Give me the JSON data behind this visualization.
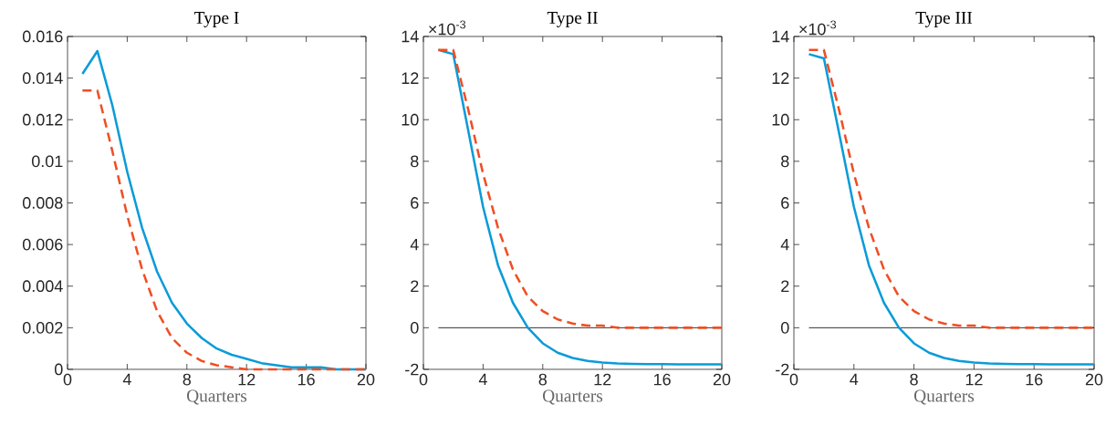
{
  "chart_data": [
    {
      "type": "line",
      "title": "Type I",
      "xlabel": "Quarters",
      "x": [
        1,
        2,
        3,
        4,
        5,
        6,
        7,
        8,
        9,
        10,
        11,
        12,
        13,
        14,
        15,
        16,
        17,
        18,
        19,
        20
      ],
      "xlim": [
        0,
        20
      ],
      "xticks": [
        0,
        4,
        8,
        12,
        16,
        20
      ],
      "ylim": [
        0,
        0.016
      ],
      "yticks": [
        0,
        0.002,
        0.004,
        0.006,
        0.008,
        0.01,
        0.012,
        0.014,
        0.016
      ],
      "series": [
        {
          "color": "#0a9bd8",
          "line_style": "solid",
          "values": [
            0.0142,
            0.0153,
            0.0127,
            0.0095,
            0.0068,
            0.0047,
            0.0032,
            0.0022,
            0.0015,
            0.001,
            0.0007,
            0.0005,
            0.0003,
            0.0002,
            0.0001,
            0.0001,
            0.0001,
            0,
            0,
            0
          ]
        },
        {
          "color": "#f04e23",
          "line_style": "dashed",
          "values": [
            0.0134,
            0.0134,
            0.0105,
            0.0074,
            0.0048,
            0.0028,
            0.0015,
            0.0008,
            0.0004,
            0.0002,
            0.0001,
            0,
            0,
            0,
            0,
            0,
            0,
            0,
            0,
            0
          ]
        }
      ]
    },
    {
      "type": "line",
      "title": "Type II",
      "xlabel": "Quarters",
      "x": [
        1,
        2,
        3,
        4,
        5,
        6,
        7,
        8,
        9,
        10,
        11,
        12,
        13,
        14,
        15,
        16,
        17,
        18,
        19,
        20
      ],
      "xlim": [
        0,
        20
      ],
      "xticks": [
        0,
        4,
        8,
        12,
        16,
        20
      ],
      "ylim": [
        -2,
        14
      ],
      "yticks": [
        -2,
        0,
        2,
        4,
        6,
        8,
        10,
        12,
        14
      ],
      "annotations": [
        "×10$^{-3}$"
      ],
      "ref_lines": [
        {
          "axis": "y",
          "value": 0,
          "color": "#000000"
        }
      ],
      "series": [
        {
          "color": "#0a9bd8",
          "line_style": "solid",
          "values": [
            13.35,
            13.15,
            9.5,
            5.8,
            3.0,
            1.2,
            0.0,
            -0.75,
            -1.2,
            -1.45,
            -1.6,
            -1.67,
            -1.72,
            -1.74,
            -1.75,
            -1.75,
            -1.76,
            -1.76,
            -1.76,
            -1.76
          ]
        },
        {
          "color": "#f04e23",
          "line_style": "dashed",
          "values": [
            13.35,
            13.35,
            10.5,
            7.4,
            4.8,
            2.8,
            1.5,
            0.8,
            0.4,
            0.2,
            0.1,
            0.1,
            0,
            0,
            0,
            0,
            0,
            0,
            0,
            0
          ]
        }
      ]
    },
    {
      "type": "line",
      "title": "Type III",
      "xlabel": "Quarters",
      "x": [
        1,
        2,
        3,
        4,
        5,
        6,
        7,
        8,
        9,
        10,
        11,
        12,
        13,
        14,
        15,
        16,
        17,
        18,
        19,
        20
      ],
      "xlim": [
        0,
        20
      ],
      "xticks": [
        0,
        4,
        8,
        12,
        16,
        20
      ],
      "ylim": [
        -2,
        14
      ],
      "yticks": [
        -2,
        0,
        2,
        4,
        6,
        8,
        10,
        12,
        14
      ],
      "annotations": [
        "×10$^{-3}$"
      ],
      "ref_lines": [
        {
          "axis": "y",
          "value": 0,
          "color": "#000000"
        }
      ],
      "series": [
        {
          "color": "#0a9bd8",
          "line_style": "solid",
          "values": [
            13.15,
            12.95,
            9.4,
            5.8,
            3.0,
            1.2,
            0.0,
            -0.75,
            -1.2,
            -1.45,
            -1.6,
            -1.67,
            -1.72,
            -1.74,
            -1.75,
            -1.75,
            -1.76,
            -1.76,
            -1.76,
            -1.76
          ]
        },
        {
          "color": "#f04e23",
          "line_style": "dashed",
          "values": [
            13.35,
            13.35,
            10.5,
            7.4,
            4.8,
            2.8,
            1.5,
            0.8,
            0.4,
            0.2,
            0.1,
            0.1,
            0,
            0,
            0,
            0,
            0,
            0,
            0,
            0
          ]
        }
      ]
    }
  ]
}
